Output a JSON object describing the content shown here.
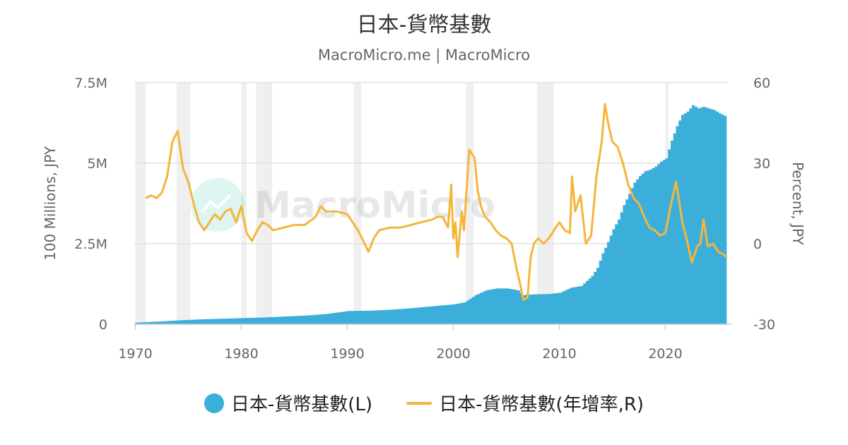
{
  "title": "日本-貨幣基數",
  "subtitle": "MacroMicro.me | MacroMicro",
  "watermark": "MacroMicro",
  "colors": {
    "bars": "#3bafda",
    "line": "#f4b63a",
    "grid": "#e0e0e0",
    "recession": "#efefef",
    "watermark": "#38c9b0"
  },
  "legend": [
    {
      "label": "日本-貨幣基數(L)",
      "marker": "circle",
      "color": "#3bafda"
    },
    {
      "label": "日本-貨幣基數(年增率,R)",
      "marker": "line",
      "color": "#f4b63a"
    }
  ],
  "chart_data": {
    "type": "bar+line",
    "title": "日本-貨幣基數",
    "subtitle": "MacroMicro.me | MacroMicro",
    "x_range": [
      1969.9,
      2025.9
    ],
    "x_ticks": [
      "1970",
      "1980",
      "1990",
      "2000",
      "2010",
      "2020"
    ],
    "left_axis": {
      "label": "100 Millions, JPY",
      "range": [
        0,
        7500000
      ],
      "ticks": [
        0,
        2500000,
        5000000,
        7500000
      ],
      "tick_labels": [
        "0",
        "2.5M",
        "5M",
        "7.5M"
      ]
    },
    "right_axis": {
      "label": "Percent, JPY",
      "range": [
        -30,
        60
      ],
      "ticks": [
        -30,
        0,
        30,
        60
      ],
      "tick_labels": [
        "-30",
        "0",
        "30",
        "60"
      ]
    },
    "recession_periods": [
      [
        1970.0,
        1971.0
      ],
      [
        1973.9,
        1975.2
      ],
      [
        1980.0,
        1980.5
      ],
      [
        1981.4,
        1982.9
      ],
      [
        1990.6,
        1991.3
      ],
      [
        2001.2,
        2001.9
      ],
      [
        2007.9,
        2009.5
      ],
      [
        2020.0,
        2020.3
      ]
    ],
    "series": [
      {
        "name": "日本-貨幣基數(L)",
        "axis": "left",
        "render": "bar",
        "x": [
          1970,
          1972,
          1974,
          1976,
          1978,
          1980,
          1982,
          1984,
          1986,
          1988,
          1990,
          1992,
          1994,
          1996,
          1998,
          2000,
          2001,
          2002,
          2003,
          2004,
          2005,
          2006,
          2006.5,
          2007,
          2008,
          2009,
          2010,
          2011,
          2012,
          2013,
          2013.5,
          2014,
          2014.5,
          2015,
          2015.5,
          2016,
          2016.5,
          2017,
          2017.5,
          2018,
          2018.5,
          2019,
          2019.5,
          2020,
          2020.5,
          2021,
          2021.5,
          2022,
          2022.5,
          2023,
          2023.5,
          2024,
          2024.5,
          2025,
          2025.6
        ],
        "values": [
          50000,
          80000,
          120000,
          150000,
          170000,
          190000,
          210000,
          240000,
          270000,
          320000,
          410000,
          420000,
          450000,
          500000,
          560000,
          620000,
          680000,
          900000,
          1050000,
          1110000,
          1110000,
          1050000,
          900000,
          920000,
          930000,
          940000,
          980000,
          1130000,
          1190000,
          1500000,
          1750000,
          2200000,
          2550000,
          2950000,
          3250000,
          3700000,
          4050000,
          4400000,
          4600000,
          4750000,
          4800000,
          4900000,
          5050000,
          5150000,
          5700000,
          6150000,
          6500000,
          6600000,
          6800000,
          6700000,
          6750000,
          6700000,
          6650000,
          6550000,
          6450000
        ]
      },
      {
        "name": "日本-貨幣基數(年增率,R)",
        "axis": "right",
        "render": "line",
        "x": [
          1971.0,
          1971.5,
          1972.0,
          1972.5,
          1973.0,
          1973.5,
          1974.0,
          1974.5,
          1975.0,
          1975.5,
          1976.0,
          1976.5,
          1977.0,
          1977.5,
          1978.0,
          1978.5,
          1979.0,
          1979.5,
          1980.0,
          1980.5,
          1981.0,
          1981.5,
          1982.0,
          1982.5,
          1983.0,
          1984.0,
          1985.0,
          1986.0,
          1987.0,
          1987.5,
          1988.0,
          1989.0,
          1990.0,
          1991.0,
          1991.5,
          1992.0,
          1992.5,
          1993.0,
          1994.0,
          1995.0,
          1996.0,
          1997.0,
          1998.0,
          1998.5,
          1999.0,
          1999.5,
          1999.8,
          2000.0,
          2000.2,
          2000.4,
          2000.8,
          2001.0,
          2001.5,
          2002.0,
          2002.3,
          2002.6,
          2003.0,
          2003.5,
          2004.0,
          2004.5,
          2005.0,
          2005.5,
          2006.0,
          2006.3,
          2006.6,
          2007.0,
          2007.3,
          2007.6,
          2008.0,
          2008.5,
          2009.0,
          2009.5,
          2010.0,
          2010.5,
          2011.0,
          2011.2,
          2011.5,
          2012.0,
          2012.5,
          2013.0,
          2013.5,
          2014.0,
          2014.3,
          2014.6,
          2015.0,
          2015.5,
          2016.0,
          2016.5,
          2017.0,
          2017.5,
          2018.0,
          2018.5,
          2019.0,
          2019.5,
          2020.0,
          2020.5,
          2021.0,
          2021.3,
          2021.6,
          2022.0,
          2022.5,
          2023.0,
          2023.3,
          2023.6,
          2024.0,
          2024.5,
          2025.0,
          2025.5,
          2025.8
        ],
        "values": [
          17,
          18,
          17,
          19,
          25,
          38,
          42,
          28,
          23,
          15,
          8,
          5,
          8,
          11,
          9,
          12,
          13,
          8,
          14,
          4,
          1,
          5,
          8,
          7,
          5,
          6,
          7,
          7,
          10,
          14,
          12,
          12,
          11,
          5,
          1,
          -3,
          2,
          5,
          6,
          6,
          7,
          8,
          9,
          10,
          10,
          6,
          22,
          2,
          8,
          -5,
          12,
          5,
          35,
          32,
          20,
          14,
          10,
          8,
          5,
          3,
          2,
          0,
          -10,
          -15,
          -21,
          -20,
          -5,
          0,
          2,
          0,
          2,
          5,
          8,
          5,
          4,
          25,
          12,
          18,
          0,
          3,
          25,
          38,
          52,
          45,
          38,
          36,
          30,
          22,
          17,
          15,
          10,
          6,
          5,
          3,
          4,
          14,
          23,
          16,
          8,
          2,
          -7,
          -1,
          0,
          9,
          -1,
          0,
          -3,
          -4,
          -5
        ]
      }
    ]
  }
}
